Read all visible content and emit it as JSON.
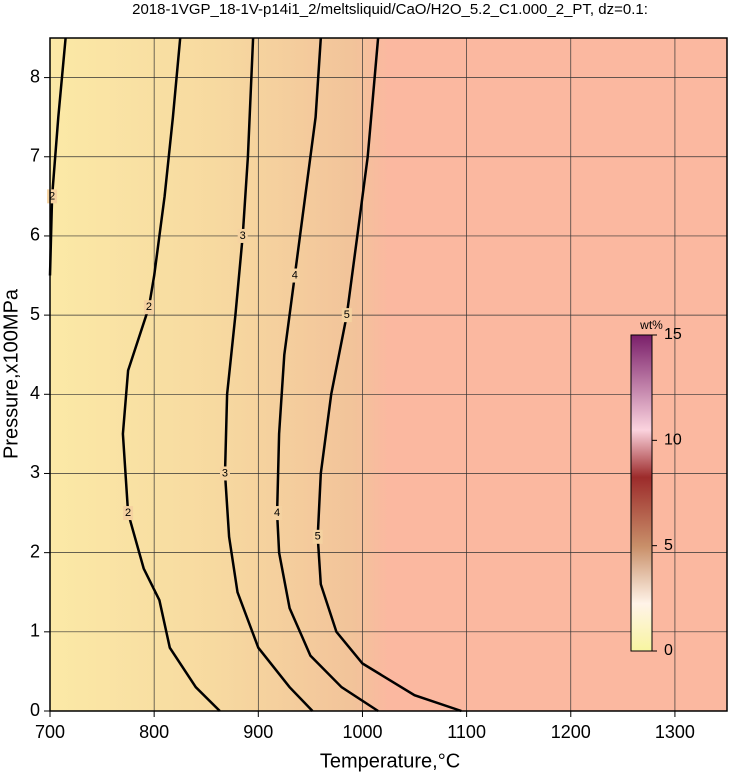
{
  "chart_data": {
    "type": "contour",
    "title": "2018-1VGP_18-1V-p14i1_2/meltsliquid/CaO/H2O_5.2_C1.000_2_PT, dz=0.1:",
    "xlabel": "Temperature,°C",
    "ylabel": "Pressure,x100MPa",
    "xlim": [
      700,
      1350
    ],
    "ylim": [
      0,
      8.5
    ],
    "xticks": [
      700,
      800,
      900,
      1000,
      1100,
      1200,
      1300
    ],
    "yticks": [
      0,
      1,
      2,
      3,
      4,
      5,
      6,
      7,
      8
    ],
    "grid": true,
    "contours": [
      {
        "level": 2,
        "x": [
          863,
          840,
          815,
          805,
          790,
          775,
          770,
          775,
          795,
          800,
          810,
          818,
          825
        ],
        "y": [
          0,
          0.3,
          0.8,
          1.4,
          1.8,
          2.5,
          3.5,
          4.3,
          5.1,
          5.5,
          6.5,
          7.5,
          8.5
        ]
      },
      {
        "level": 2,
        "x": [
          700,
          702,
          708,
          715
        ],
        "y": [
          5.5,
          6.5,
          7.5,
          8.5
        ]
      },
      {
        "level": 3,
        "x": [
          952,
          930,
          900,
          880,
          872,
          868,
          870,
          878,
          885,
          890,
          895
        ],
        "y": [
          0,
          0.3,
          0.8,
          1.5,
          2.2,
          3,
          4,
          5,
          6,
          7,
          8.5
        ]
      },
      {
        "level": 4,
        "x": [
          1015,
          980,
          950,
          930,
          920,
          918,
          920,
          925,
          935,
          945,
          955,
          960
        ],
        "y": [
          0,
          0.3,
          0.7,
          1.3,
          2,
          2.5,
          3.5,
          4.5,
          5.5,
          6.5,
          7.5,
          8.5
        ]
      },
      {
        "level": 5,
        "x": [
          1095,
          1050,
          1000,
          975,
          960,
          957,
          960,
          970,
          985,
          995,
          1005,
          1015
        ],
        "y": [
          0,
          0.2,
          0.6,
          1,
          1.6,
          2.2,
          3,
          4,
          5,
          6,
          7,
          8.5
        ]
      }
    ],
    "colorbar": {
      "label": "wt%",
      "lim": [
        0,
        15
      ],
      "ticks": [
        0,
        5,
        10,
        15
      ]
    }
  }
}
